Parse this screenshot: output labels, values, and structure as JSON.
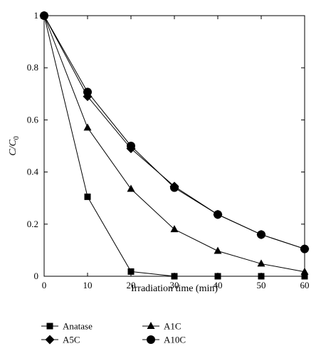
{
  "chart_data": {
    "type": "line",
    "xlabel": "Irradiation time (min)",
    "ylabel_main": "C/C",
    "ylabel_sub": "0",
    "xlim": [
      0,
      60
    ],
    "ylim": [
      0,
      1
    ],
    "xticks": [
      0,
      10,
      20,
      30,
      40,
      50,
      60
    ],
    "yticks": [
      0,
      0.2,
      0.4,
      0.6,
      0.8,
      1
    ],
    "ytick_labels": [
      "0",
      "0.2",
      "0.4",
      "0.6",
      "0.8",
      "1"
    ],
    "grid": false,
    "legend_placement": "bottom",
    "x": [
      0,
      10,
      20,
      30,
      40,
      50,
      60
    ],
    "series": [
      {
        "name": "Anatase",
        "marker": "square",
        "values": [
          1.0,
          0.305,
          0.018,
          0.0,
          0.0,
          0.0,
          0.0
        ]
      },
      {
        "name": "A1C",
        "marker": "triangle",
        "values": [
          1.0,
          0.57,
          0.335,
          0.18,
          0.097,
          0.048,
          0.017
        ]
      },
      {
        "name": "A5C",
        "marker": "diamond",
        "values": [
          1.0,
          0.69,
          0.49,
          0.345,
          0.237,
          0.16,
          0.105
        ]
      },
      {
        "name": "A10C",
        "marker": "circle",
        "values": [
          1.0,
          0.707,
          0.5,
          0.34,
          0.237,
          0.16,
          0.105
        ]
      }
    ],
    "line_color": "#000000"
  }
}
